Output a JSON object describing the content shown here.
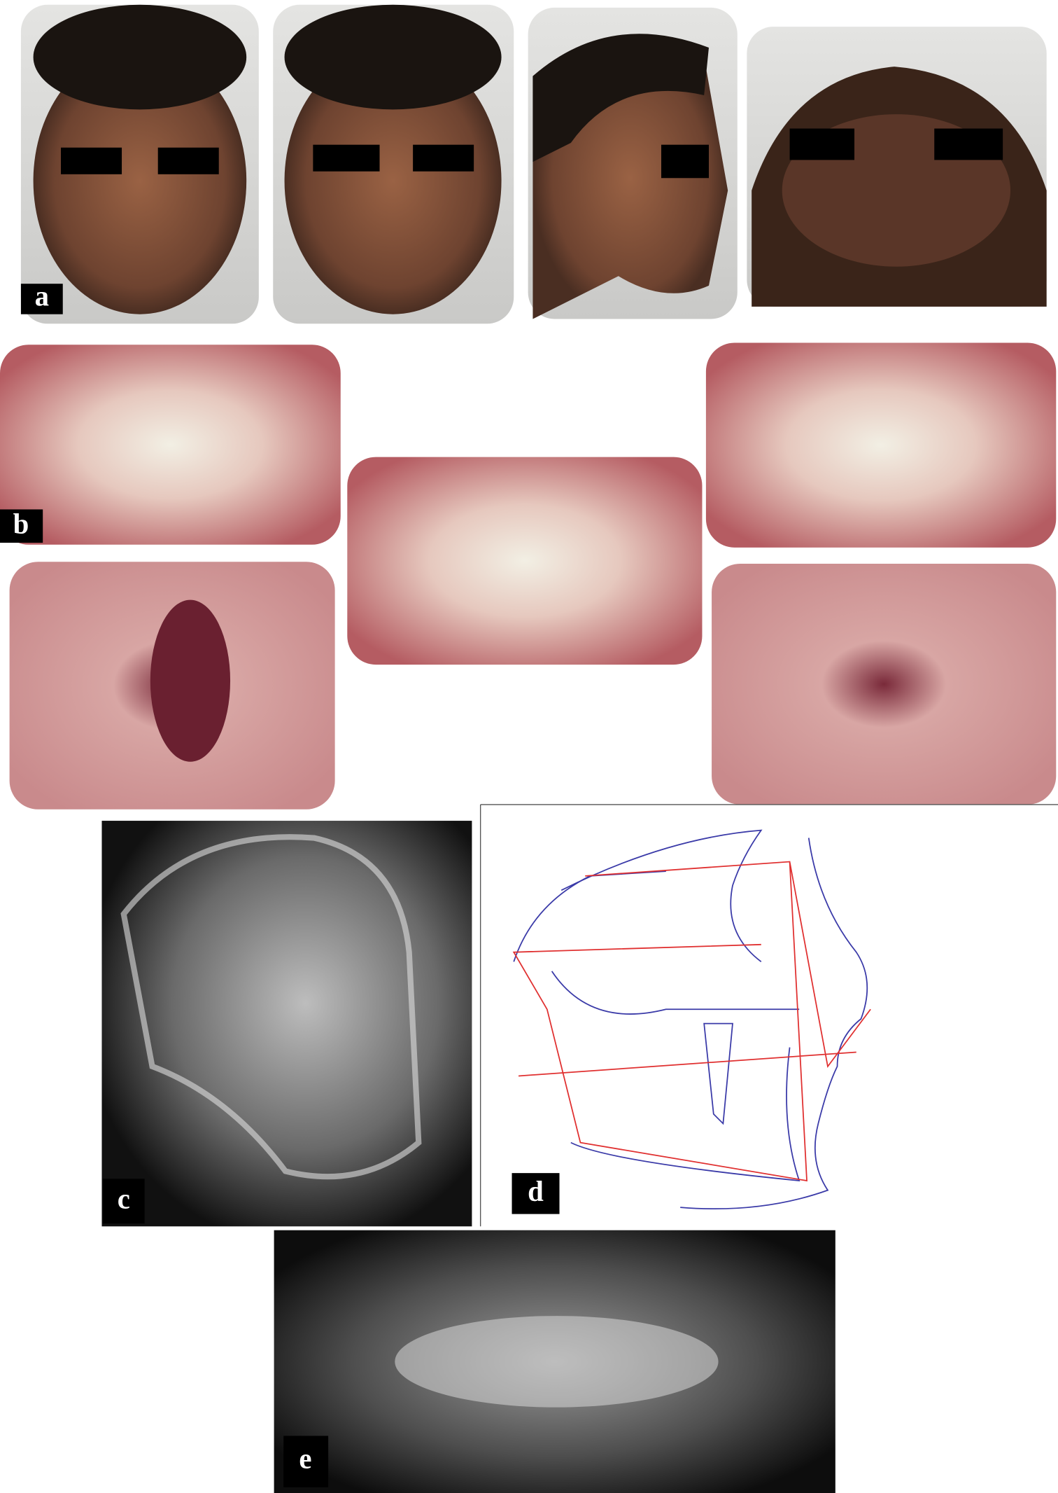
{
  "panels": [
    {
      "label": "a"
    },
    {
      "label": "b"
    },
    {
      "label": "c"
    },
    {
      "label": "d"
    },
    {
      "label": "e"
    }
  ]
}
